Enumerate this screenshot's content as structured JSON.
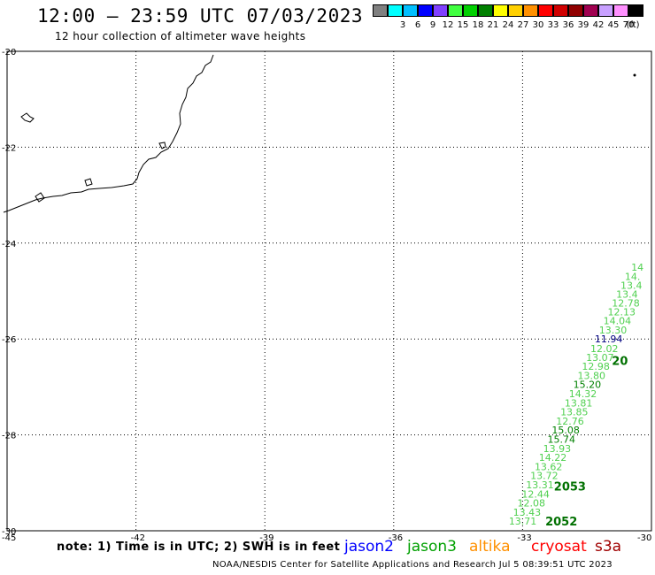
{
  "title": "12:00 – 23:59 UTC 07/03/2023",
  "subtitle": "12 hour collection of altimeter wave heights",
  "legend": {
    "unit": "(ft)",
    "items": [
      {
        "label": "",
        "color": "#808080"
      },
      {
        "label": "3",
        "color": "#00ffff"
      },
      {
        "label": "6",
        "color": "#00bfff"
      },
      {
        "label": "9",
        "color": "#0000ff"
      },
      {
        "label": "12",
        "color": "#8040ff"
      },
      {
        "label": "15",
        "color": "#40ff40"
      },
      {
        "label": "18",
        "color": "#00d000"
      },
      {
        "label": "21",
        "color": "#008000"
      },
      {
        "label": "24",
        "color": "#ffff00"
      },
      {
        "label": "27",
        "color": "#ffd000"
      },
      {
        "label": "30",
        "color": "#ff9000"
      },
      {
        "label": "33",
        "color": "#ff0000"
      },
      {
        "label": "36",
        "color": "#d00000"
      },
      {
        "label": "39",
        "color": "#900000"
      },
      {
        "label": "42",
        "color": "#a00050"
      },
      {
        "label": "45",
        "color": "#c8a0ff"
      },
      {
        "label": "70",
        "color": "#ff90ff"
      },
      {
        "label": "",
        "color": "#000000"
      }
    ]
  },
  "map": {
    "lat_labels": [
      "-20",
      "-22",
      "-24",
      "-26",
      "-28",
      "-30"
    ],
    "lon_labels": [
      "-45",
      "-42",
      "-39",
      "-36",
      "-33",
      "-30"
    ],
    "lon_range": [
      -45,
      -30
    ],
    "lat_range": [
      -30,
      -20
    ]
  },
  "track": {
    "color": "#50d050",
    "values": [
      {
        "t": "14",
        "lat": -24.5,
        "lon": -30.1
      },
      {
        "t": "14.",
        "lat": -24.7,
        "lon": -30.25
      },
      {
        "t": "13.4",
        "lat": -24.88,
        "lon": -30.35
      },
      {
        "t": "13.4",
        "lat": -25.06,
        "lon": -30.45
      },
      {
        "t": "12.78",
        "lat": -25.25,
        "lon": -30.55
      },
      {
        "t": "12.13",
        "lat": -25.43,
        "lon": -30.65
      },
      {
        "t": "14.04",
        "lat": -25.62,
        "lon": -30.75
      },
      {
        "t": "13.30",
        "lat": -25.81,
        "lon": -30.85
      },
      {
        "t": "11.94",
        "lat": -26.0,
        "lon": -30.95,
        "color": "#000080"
      },
      {
        "t": "12.02",
        "lat": -26.2,
        "lon": -31.05
      },
      {
        "t": "13.07",
        "lat": -26.38,
        "lon": -31.15
      },
      {
        "t": "12.98",
        "lat": -26.57,
        "lon": -31.25
      },
      {
        "t": "13.80",
        "lat": -26.76,
        "lon": -31.35
      },
      {
        "t": "15.20",
        "lat": -26.95,
        "lon": -31.45,
        "color": "#008000"
      },
      {
        "t": "14.32",
        "lat": -27.14,
        "lon": -31.55
      },
      {
        "t": "13.81",
        "lat": -27.33,
        "lon": -31.65
      },
      {
        "t": "13.85",
        "lat": -27.52,
        "lon": -31.75
      },
      {
        "t": "12.76",
        "lat": -27.71,
        "lon": -31.85
      },
      {
        "t": "15.08",
        "lat": -27.9,
        "lon": -31.95,
        "color": "#008000"
      },
      {
        "t": "15.74",
        "lat": -28.09,
        "lon": -32.05,
        "color": "#008000"
      },
      {
        "t": "13.93",
        "lat": -28.28,
        "lon": -32.15
      },
      {
        "t": "14.22",
        "lat": -28.47,
        "lon": -32.25
      },
      {
        "t": "13.62",
        "lat": -28.66,
        "lon": -32.35
      },
      {
        "t": "13.72",
        "lat": -28.85,
        "lon": -32.45
      },
      {
        "t": "13.31",
        "lat": -29.04,
        "lon": -32.55
      },
      {
        "t": "12.44",
        "lat": -29.23,
        "lon": -32.65
      },
      {
        "t": "12.08",
        "lat": -29.42,
        "lon": -32.75
      },
      {
        "t": "13.43",
        "lat": -29.61,
        "lon": -32.85
      },
      {
        "t": "13.71",
        "lat": -29.8,
        "lon": -32.95
      }
    ],
    "pass_labels": [
      {
        "t": "20",
        "lat": -26.45,
        "lon": -30.55
      },
      {
        "t": "2053",
        "lat": -29.07,
        "lon": -31.9
      },
      {
        "t": "2052",
        "lat": -29.8,
        "lon": -32.1
      }
    ],
    "pass_color": "#007000"
  },
  "note": "note:  1) Time is in UTC;  2) SWH is in feet",
  "satellites": [
    {
      "name": "jason2",
      "color": "#0000ff"
    },
    {
      "name": "jason3",
      "color": "#00a000"
    },
    {
      "name": "altika",
      "color": "#ff9000"
    },
    {
      "name": "cryosat",
      "color": "#ff0000"
    },
    {
      "name": "s3a",
      "color": "#a00000"
    }
  ],
  "footer": "NOAA/NESDIS Center for Satellite Applications and Research    Jul  5 08:39:51 UTC 2023"
}
